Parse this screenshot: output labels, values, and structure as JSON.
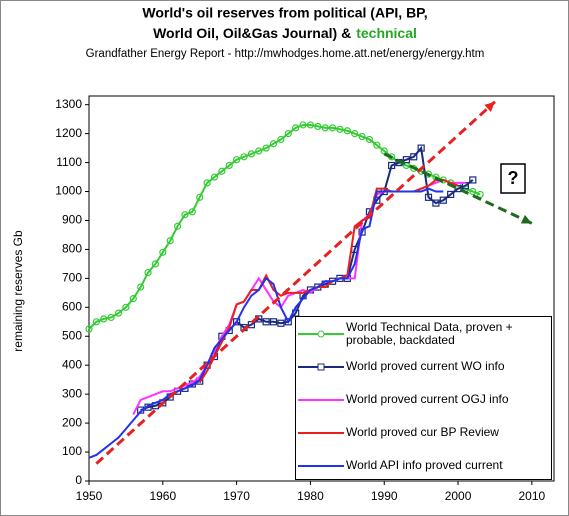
{
  "chart_data": {
    "type": "line",
    "title": [
      "World's oil reserves from political (API, BP,",
      "World Oil, Oil&Gas Journal) &"
    ],
    "title_highlight": "technical",
    "title_highlight_color": "#22aa22",
    "subtitle": "Grandfather Energy Report - http://mwhodges.home.att.net/energy/energy.htm",
    "y_label": "remaining reserves Gb",
    "annotation": "?",
    "xlim": [
      1950,
      2013
    ],
    "ylim": [
      0,
      1330
    ],
    "xticks": [
      1950,
      1960,
      1970,
      1980,
      1990,
      2000,
      2010
    ],
    "yticks": [
      0,
      100,
      200,
      300,
      400,
      500,
      600,
      700,
      800,
      900,
      1000,
      1100,
      1200,
      1300
    ],
    "grid": false,
    "series": [
      {
        "name": "World Technical Data, proven + probable, backdated",
        "color": "#33cc33",
        "marker": "circle",
        "x": [
          1950,
          1951,
          1952,
          1953,
          1954,
          1955,
          1956,
          1957,
          1958,
          1959,
          1960,
          1961,
          1962,
          1963,
          1964,
          1965,
          1966,
          1967,
          1968,
          1969,
          1970,
          1971,
          1972,
          1973,
          1974,
          1975,
          1976,
          1977,
          1978,
          1979,
          1980,
          1981,
          1982,
          1983,
          1984,
          1985,
          1986,
          1987,
          1988,
          1989,
          1990,
          1991,
          1992,
          1993,
          1994,
          1995,
          1996,
          1997,
          1998,
          1999,
          2000,
          2001,
          2002,
          2003
        ],
        "values": [
          525,
          550,
          560,
          565,
          580,
          600,
          630,
          670,
          720,
          750,
          790,
          830,
          880,
          920,
          930,
          980,
          1030,
          1050,
          1070,
          1090,
          1110,
          1120,
          1130,
          1140,
          1150,
          1165,
          1180,
          1200,
          1220,
          1230,
          1230,
          1225,
          1220,
          1220,
          1215,
          1210,
          1200,
          1190,
          1180,
          1160,
          1140,
          1120,
          1100,
          1090,
          1080,
          1070,
          1060,
          1050,
          1040,
          1030,
          1020,
          1010,
          1000,
          990
        ]
      },
      {
        "name": "World proved current WO info",
        "color": "#1a2a80",
        "marker": "square",
        "x": [
          1957,
          1958,
          1959,
          1960,
          1961,
          1962,
          1963,
          1964,
          1965,
          1966,
          1967,
          1968,
          1969,
          1970,
          1971,
          1972,
          1973,
          1974,
          1975,
          1976,
          1977,
          1978,
          1979,
          1980,
          1981,
          1982,
          1983,
          1984,
          1985,
          1986,
          1987,
          1988,
          1989,
          1990,
          1991,
          1992,
          1993,
          1994,
          1995,
          1996,
          1997,
          1998,
          1999,
          2000,
          2001,
          2002
        ],
        "values": [
          245,
          255,
          260,
          270,
          290,
          310,
          320,
          335,
          345,
          400,
          430,
          500,
          520,
          550,
          530,
          540,
          560,
          550,
          550,
          545,
          550,
          580,
          640,
          660,
          670,
          680,
          690,
          700,
          700,
          800,
          860,
          930,
          970,
          1000,
          1090,
          1100,
          1110,
          1120,
          1150,
          980,
          960,
          970,
          990,
          1010,
          1020,
          1040
        ]
      },
      {
        "name": "World proved current OGJ info",
        "color": "#ff33ff",
        "marker": "none",
        "x": [
          1956,
          1957,
          1958,
          1959,
          1960,
          1961,
          1962,
          1963,
          1964,
          1965,
          1966,
          1967,
          1968,
          1969,
          1970,
          1971,
          1972,
          1973,
          1974,
          1975,
          1976,
          1977,
          1978,
          1979,
          1980,
          1981,
          1982,
          1983,
          1984,
          1985,
          1986,
          1987,
          1988,
          1989,
          1990,
          1991,
          1992,
          1993,
          1994,
          1995,
          1996,
          1997,
          1998,
          1999,
          2000,
          2001
        ],
        "values": [
          230,
          280,
          290,
          300,
          310,
          310,
          320,
          330,
          340,
          360,
          400,
          450,
          500,
          540,
          610,
          620,
          660,
          700,
          660,
          620,
          600,
          640,
          650,
          660,
          650,
          670,
          690,
          690,
          700,
          700,
          700,
          900,
          920,
          990,
          1000,
          1000,
          1000,
          1000,
          1000,
          1010,
          1020,
          1030,
          1040,
          1030,
          1030,
          1030
        ]
      },
      {
        "name": "World proved cur BP Review",
        "color": "#e82020",
        "marker": "none",
        "x": [
          1965,
          1966,
          1967,
          1968,
          1969,
          1970,
          1971,
          1972,
          1973,
          1974,
          1975,
          1976,
          1977,
          1978,
          1979,
          1980,
          1981,
          1982,
          1983,
          1984,
          1985,
          1986,
          1987,
          1988,
          1989,
          1990,
          1991,
          1992,
          1993,
          1994,
          1995,
          1996,
          1997,
          1998,
          1999,
          2000
        ],
        "values": [
          340,
          380,
          430,
          480,
          530,
          610,
          620,
          660,
          660,
          710,
          660,
          640,
          650,
          650,
          650,
          660,
          670,
          670,
          690,
          700,
          710,
          880,
          900,
          910,
          1010,
          1010,
          1000,
          1000,
          1000,
          1000,
          1010,
          1020,
          1040,
          1040,
          1030,
          1020
        ]
      },
      {
        "name": "World API info proved current",
        "color": "#2233ee",
        "marker": "none",
        "x": [
          1950,
          1951,
          1952,
          1953,
          1954,
          1955,
          1956,
          1957,
          1958,
          1959,
          1960,
          1961,
          1962,
          1963,
          1964,
          1965,
          1966,
          1967,
          1968,
          1969,
          1970,
          1971,
          1972,
          1973,
          1974,
          1975,
          1976,
          1977,
          1978,
          1979,
          1980,
          1981,
          1982,
          1983,
          1984,
          1985,
          1986,
          1987,
          1988,
          1989,
          1990,
          1991,
          1992,
          1993,
          1994,
          1995,
          1996,
          1997,
          1998
        ],
        "values": [
          80,
          90,
          110,
          130,
          150,
          180,
          210,
          240,
          260,
          270,
          280,
          300,
          310,
          320,
          330,
          350,
          400,
          460,
          490,
          520,
          550,
          600,
          640,
          660,
          700,
          680,
          600,
          550,
          600,
          630,
          660,
          670,
          690,
          690,
          700,
          700,
          750,
          870,
          880,
          1000,
          1000,
          1000,
          1000,
          1000,
          1000,
          1000,
          1010,
          1000,
          1000
        ]
      }
    ],
    "trend_lines": [
      {
        "color": "#e82020",
        "x": [
          1951,
          2005
        ],
        "values": [
          60,
          1310
        ]
      },
      {
        "color": "#1f6a1f",
        "x": [
          1990,
          2010
        ],
        "values": [
          1130,
          890
        ]
      }
    ]
  }
}
